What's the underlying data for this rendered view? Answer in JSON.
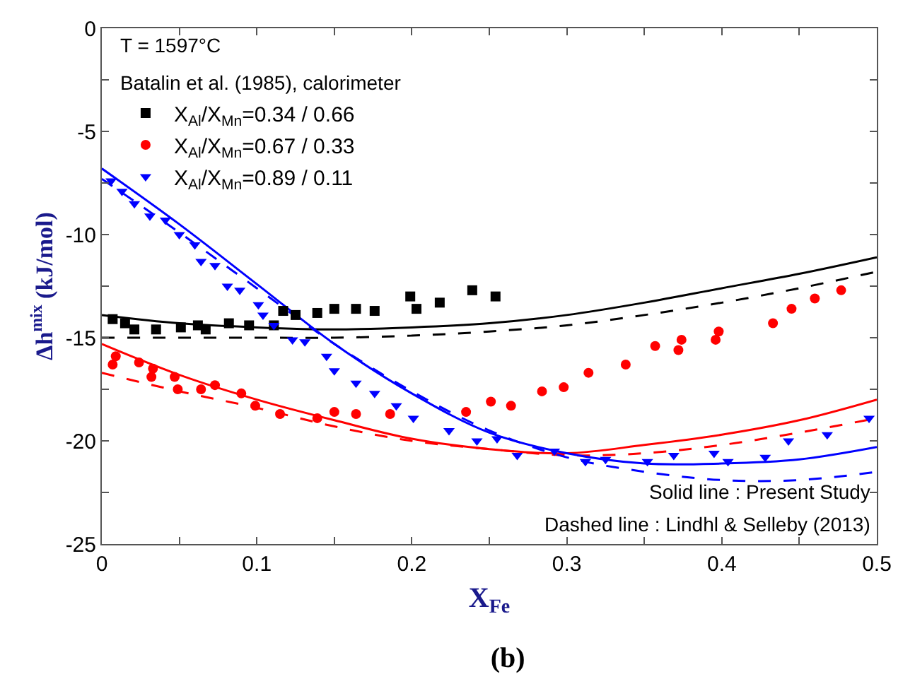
{
  "chart_data": {
    "type": "scatter",
    "title": "(b)",
    "xlabel": "X$_{Fe}$",
    "ylabel": "Δh$^{mix}$ (kJ/mol)",
    "legend_title": "Batalin et al. (1985), calorimeter",
    "legend": "top left",
    "annotations": [
      "T = 1597°C",
      "Solid line : Present Study",
      "Dashed line : Lindhl & Selleby (2013)"
    ],
    "xlim": [
      0,
      0.5
    ],
    "ylim": [
      -25,
      0
    ],
    "xticks": [
      0,
      {
        "value": 0.05,
        "label": null
      },
      0.1,
      {
        "value": 0.15,
        "label": null
      },
      0.2,
      {
        "value": 0.25,
        "label": null
      },
      0.3,
      {
        "value": 0.35,
        "label": null
      },
      0.4,
      {
        "value": 0.45,
        "label": null
      },
      0.5
    ],
    "yticks": [
      -25,
      {
        "value": -22.5,
        "label": null
      },
      -20,
      {
        "value": -17.5,
        "label": null
      },
      -15,
      {
        "value": -12.5,
        "label": null
      },
      -10,
      {
        "value": -7.5,
        "label": null
      },
      -5,
      {
        "value": -2.5,
        "label": null
      },
      0
    ],
    "series": [
      {
        "type": "line",
        "color": "#000000",
        "line_style": "solid",
        "marker": "none",
        "x": [
          0,
          0.05,
          0.1,
          0.15,
          0.2,
          0.25,
          0.3,
          0.35,
          0.4,
          0.45,
          0.5
        ],
        "values": [
          -13.9,
          -14.3,
          -14.5,
          -14.6,
          -14.5,
          -14.3,
          -13.9,
          -13.3,
          -12.6,
          -11.9,
          -11.1
        ]
      },
      {
        "type": "line",
        "color": "#000000",
        "line_style": "dashed",
        "marker": "none",
        "x": [
          0,
          0.05,
          0.1,
          0.15,
          0.2,
          0.25,
          0.3,
          0.35,
          0.4,
          0.45,
          0.5
        ],
        "values": [
          -15.0,
          -15.0,
          -15.0,
          -15.0,
          -14.9,
          -14.7,
          -14.4,
          -13.9,
          -13.3,
          -12.6,
          -11.8
        ]
      },
      {
        "type": "line",
        "color": "#ff0000",
        "line_style": "solid",
        "marker": "none",
        "x": [
          0,
          0.05,
          0.1,
          0.15,
          0.2,
          0.25,
          0.3,
          0.35,
          0.4,
          0.45,
          0.5
        ],
        "values": [
          -15.3,
          -16.8,
          -18.0,
          -19.0,
          -19.9,
          -20.4,
          -20.6,
          -20.2,
          -19.7,
          -19.0,
          -18.0
        ]
      },
      {
        "type": "line",
        "color": "#ff0000",
        "line_style": "dashed",
        "marker": "none",
        "x": [
          0,
          0.05,
          0.1,
          0.15,
          0.2,
          0.25,
          0.3,
          0.35,
          0.4,
          0.45,
          0.5
        ],
        "values": [
          -16.7,
          -17.6,
          -18.4,
          -19.3,
          -20.0,
          -20.4,
          -20.7,
          -20.6,
          -20.2,
          -19.6,
          -18.9
        ]
      },
      {
        "type": "line",
        "color": "#0000ff",
        "line_style": "solid",
        "marker": "none",
        "x": [
          0,
          0.05,
          0.1,
          0.15,
          0.2,
          0.25,
          0.3,
          0.35,
          0.4,
          0.45,
          0.5
        ],
        "values": [
          -6.8,
          -9.5,
          -12.4,
          -15.3,
          -17.7,
          -19.6,
          -20.6,
          -21.1,
          -21.1,
          -20.9,
          -20.3
        ]
      },
      {
        "type": "line",
        "color": "#0000ff",
        "line_style": "dashed",
        "marker": "none",
        "x": [
          0,
          0.05,
          0.1,
          0.15,
          0.2,
          0.25,
          0.3,
          0.35,
          0.4,
          0.45,
          0.5
        ],
        "values": [
          -7.3,
          -9.9,
          -12.6,
          -15.3,
          -17.6,
          -19.5,
          -20.8,
          -21.5,
          -21.9,
          -21.9,
          -21.5
        ]
      },
      {
        "name": "X$_{Al}$/X$_{Mn}$=0.34 / 0.66",
        "color": "#000000",
        "marker": "square",
        "x": [
          0.007,
          0.015,
          0.021,
          0.035,
          0.051,
          0.062,
          0.067,
          0.082,
          0.095,
          0.111,
          0.117,
          0.125,
          0.139,
          0.15,
          0.164,
          0.176,
          0.199,
          0.203,
          0.218,
          0.239,
          0.254
        ],
        "values": [
          -14.1,
          -14.3,
          -14.6,
          -14.6,
          -14.5,
          -14.4,
          -14.6,
          -14.3,
          -14.4,
          -14.4,
          -13.7,
          -13.9,
          -13.8,
          -13.6,
          -13.6,
          -13.7,
          -13.0,
          -13.6,
          -13.3,
          -12.7,
          -13.0
        ]
      },
      {
        "name": "X$_{Al}$/X$_{Mn}$=0.67 / 0.33",
        "color": "#ff0000",
        "marker": "circle",
        "x": [
          0.007,
          0.009,
          0.024,
          0.032,
          0.033,
          0.047,
          0.049,
          0.064,
          0.073,
          0.09,
          0.099,
          0.115,
          0.139,
          0.15,
          0.164,
          0.186,
          0.235,
          0.251,
          0.264,
          0.284,
          0.298,
          0.314,
          0.338,
          0.357,
          0.372,
          0.374,
          0.396,
          0.398,
          0.433,
          0.445,
          0.46,
          0.477
        ],
        "values": [
          -16.3,
          -15.9,
          -16.2,
          -16.9,
          -16.5,
          -16.9,
          -17.5,
          -17.5,
          -17.3,
          -17.7,
          -18.3,
          -18.7,
          -18.9,
          -18.6,
          -18.7,
          -18.7,
          -18.6,
          -18.1,
          -18.3,
          -17.6,
          -17.4,
          -16.7,
          -16.3,
          -15.4,
          -15.6,
          -15.1,
          -15.1,
          -14.7,
          -14.3,
          -13.6,
          -13.1,
          -12.7
        ]
      },
      {
        "name": "X$_{Al}$/X$_{Mn}$=0.89 / 0.11",
        "color": "#0000ff",
        "marker": "triangle",
        "x": [
          0.006,
          0.013,
          0.021,
          0.031,
          0.041,
          0.05,
          0.06,
          0.064,
          0.073,
          0.081,
          0.089,
          0.101,
          0.104,
          0.111,
          0.123,
          0.131,
          0.145,
          0.15,
          0.164,
          0.176,
          0.19,
          0.201,
          0.224,
          0.242,
          0.255,
          0.268,
          0.292,
          0.312,
          0.325,
          0.352,
          0.369,
          0.395,
          0.404,
          0.428,
          0.443,
          0.468,
          0.495
        ],
        "values": [
          -7.4,
          -7.9,
          -8.5,
          -9.1,
          -9.3,
          -10.0,
          -10.5,
          -11.3,
          -11.5,
          -12.5,
          -12.7,
          -13.4,
          -13.9,
          -14.4,
          -15.1,
          -15.2,
          -15.9,
          -16.6,
          -17.2,
          -17.7,
          -18.3,
          -18.9,
          -19.5,
          -20.0,
          -19.9,
          -20.7,
          -20.5,
          -21.0,
          -20.9,
          -21.0,
          -20.7,
          -20.6,
          -21.0,
          -20.8,
          -20.0,
          -19.7,
          -18.9
        ]
      }
    ]
  }
}
